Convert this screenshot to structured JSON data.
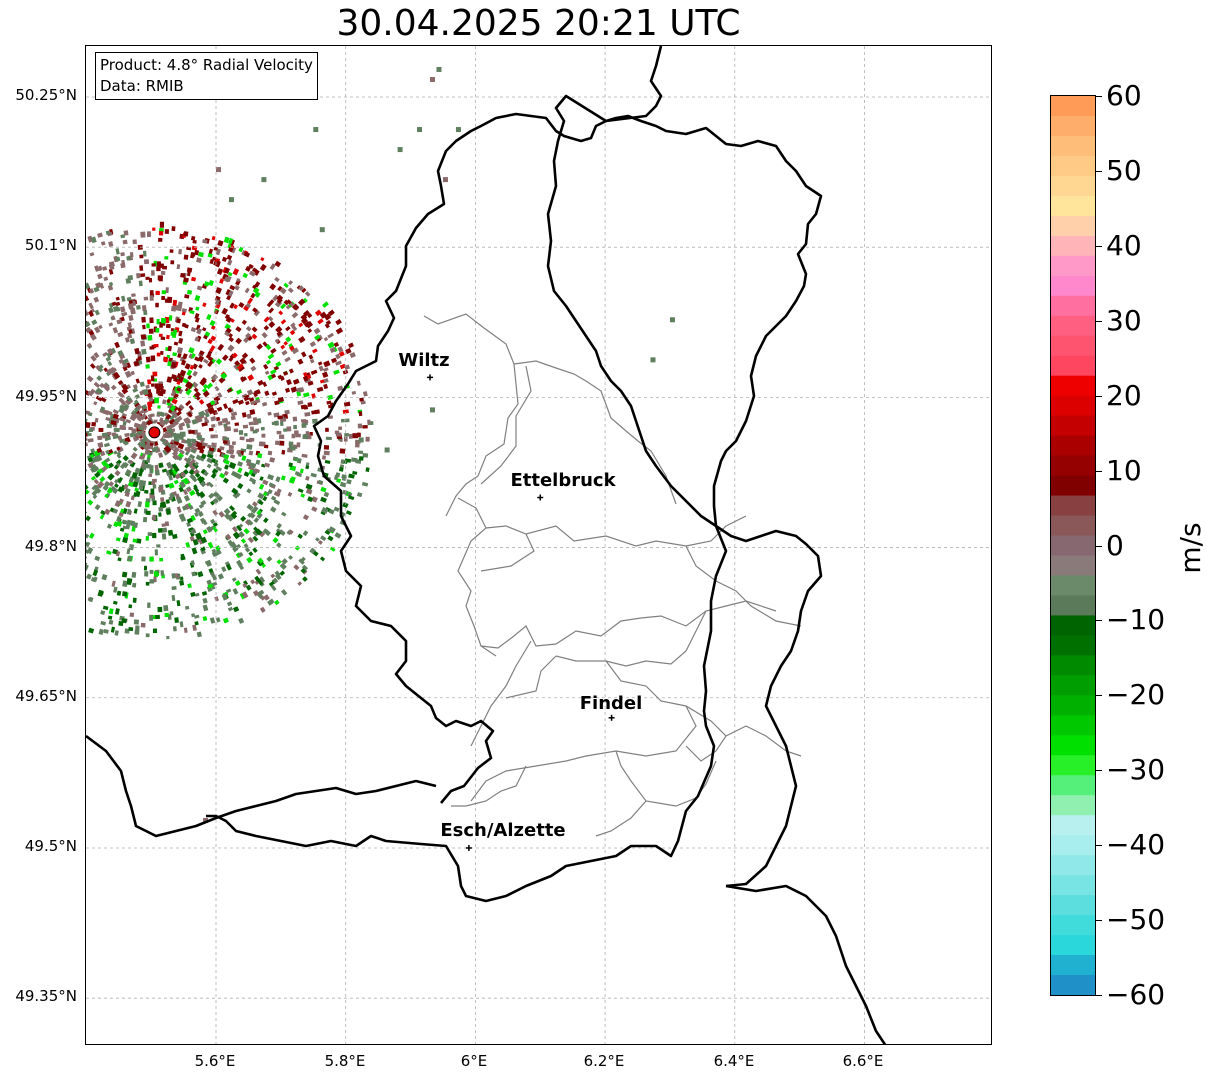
{
  "title": "30.04.2025 20:21 UTC",
  "info": {
    "product": "Product: 4.8° Radial Velocity",
    "data": "Data: RMIB"
  },
  "axes": {
    "lat_labels": [
      "50.25°N",
      "50.1°N",
      "49.95°N",
      "49.8°N",
      "49.65°N",
      "49.5°N",
      "49.35°N"
    ],
    "lon_labels": [
      "5.6°E",
      "5.8°E",
      "6°E",
      "6.2°E",
      "6.4°E",
      "6.6°E"
    ]
  },
  "cities": [
    {
      "name": "Wiltz",
      "lon": 5.93,
      "lat": 49.97
    },
    {
      "name": "Ettelbruck",
      "lon": 6.1,
      "lat": 49.85
    },
    {
      "name": "Findel",
      "lon": 6.21,
      "lat": 49.63
    },
    {
      "name": "Esch/Alzette",
      "lon": 5.99,
      "lat": 49.5
    }
  ],
  "radar_site": {
    "lon": 5.505,
    "lat": 49.915,
    "color": "#e00000"
  },
  "colorbar": {
    "unit": "m/s",
    "min": -60,
    "max": 60,
    "ticks": [
      "60",
      "50",
      "40",
      "30",
      "20",
      "10",
      "0",
      "−10",
      "−20",
      "−30",
      "−40",
      "−50",
      "−60"
    ],
    "colors": [
      "#ff9a57",
      "#ffad6a",
      "#ffbd7a",
      "#ffca85",
      "#ffd793",
      "#ffe49c",
      "#ffd0aa",
      "#ffb4b8",
      "#ff9ac8",
      "#ff88cc",
      "#ff70a0",
      "#ff5f80",
      "#ff5470",
      "#ff4660",
      "#ee0000",
      "#dd0000",
      "#c40000",
      "#aa0000",
      "#950000",
      "#800000",
      "#884040",
      "#8a5858",
      "#886870",
      "#8a7a7a",
      "#6a8a6a",
      "#5a7a5a",
      "#006400",
      "#007000",
      "#008a00",
      "#009e00",
      "#00b000",
      "#00c800",
      "#00e000",
      "#28f028",
      "#55f07a",
      "#90f0b0",
      "#b8f0f0",
      "#a8eeee",
      "#90e8e8",
      "#78e4e4",
      "#5cdede",
      "#40dcdc",
      "#2ad8dc",
      "#20b0d0",
      "#2090c8"
    ]
  },
  "colors": {
    "border": "#000000",
    "canton": "#808080",
    "grid": "#b0b0b0",
    "echo_approach_dark": "#006400",
    "echo_approach_bright": "#00e000",
    "echo_receding_dark": "#800000",
    "echo_receding_bright": "#e00000",
    "echo_near_zero_green": "#5f7f5f",
    "echo_near_zero_red": "#8a6a6a"
  }
}
